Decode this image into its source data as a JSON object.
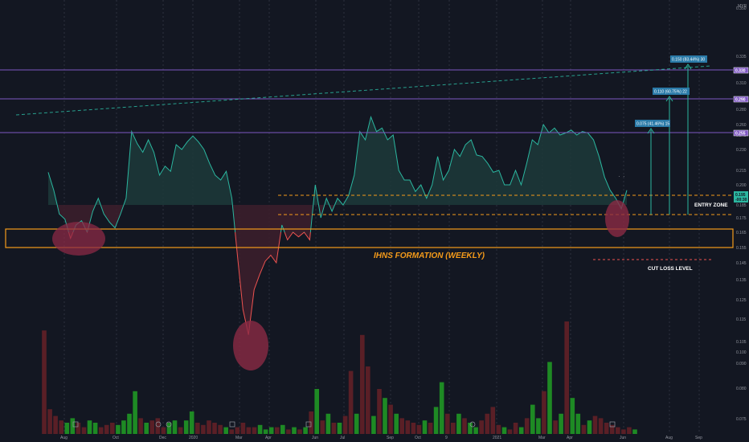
{
  "colors": {
    "background": "#131722",
    "price_line_up": "#2bb7a0",
    "price_line_down": "#ef5350",
    "fill_up": "#1d3a3a",
    "fill_down": "#3d1f2c",
    "horizontal_resistance": "#7e57c2",
    "zone_orange": "#f59b1a",
    "dashed_trend": "#2bb7a0",
    "vol_up": "#1e8a24",
    "vol_down": "#5a1f26",
    "highlight_circle": "#8b2a45",
    "target_box": "#2a7aa8",
    "cut_loss": "#ef5350"
  },
  "chart_data": {
    "type": "line",
    "y_axis_unit": "MYR",
    "y_ticks": [
      "0.350",
      "0.335",
      "0.320",
      "0.310",
      "0.290",
      "0.280",
      "0.260",
      "0.245",
      "0.230",
      "0.215",
      "0.200",
      "0.185",
      "0.175",
      "0.165",
      "0.155",
      "0.145",
      "0.135",
      "0.125",
      "0.115",
      "0.105",
      "0.100",
      "0.090",
      "0.080",
      "0.075"
    ],
    "x_ticks": [
      "Aug",
      "Oct",
      "Dec",
      "2020",
      "Mar",
      "Apr",
      "Jun",
      "Jul",
      "Sep",
      "Oct",
      "9",
      "2021",
      "Mar",
      "Apr",
      "Jun",
      "Aug",
      "Sep"
    ],
    "price_series": {
      "name": "",
      "note_values": "weekly closes (approx)",
      "values": [
        0.213,
        0.196,
        0.178,
        0.174,
        0.161,
        0.17,
        0.173,
        0.165,
        0.18,
        0.19,
        0.178,
        0.172,
        0.168,
        0.178,
        0.19,
        0.25,
        0.236,
        0.228,
        0.24,
        0.228,
        0.21,
        0.218,
        0.214,
        0.235,
        0.23,
        0.238,
        0.244,
        0.238,
        0.23,
        0.22,
        0.21,
        0.205,
        0.214,
        0.19,
        0.15,
        0.12,
        0.108,
        0.13,
        0.138,
        0.146,
        0.15,
        0.145,
        0.17,
        0.16,
        0.165,
        0.162,
        0.165,
        0.16,
        0.2,
        0.175,
        0.19,
        0.18,
        0.19,
        0.185,
        0.192,
        0.21,
        0.25,
        0.24,
        0.27,
        0.25,
        0.255,
        0.24,
        0.245,
        0.215,
        0.205,
        0.205,
        0.195,
        0.2,
        0.19,
        0.2,
        0.225,
        0.205,
        0.215,
        0.23,
        0.225,
        0.235,
        0.24,
        0.226,
        0.225,
        0.22,
        0.213,
        0.215,
        0.2,
        0.2,
        0.215,
        0.2,
        0.22,
        0.24,
        0.235,
        0.26,
        0.248,
        0.255,
        0.245,
        0.248,
        0.252,
        0.245,
        0.25,
        0.248,
        0.24,
        0.225,
        0.208,
        0.196,
        0.19,
        0.182,
        0.196
      ]
    },
    "volume_series": {
      "name": "",
      "note_values": "relative weekly volume (0-1)",
      "values": [
        0.92,
        0.22,
        0.16,
        0.12,
        0.1,
        0.14,
        0.1,
        0.06,
        0.12,
        0.1,
        0.06,
        0.08,
        0.1,
        0.08,
        0.12,
        0.18,
        0.38,
        0.14,
        0.1,
        0.12,
        0.14,
        0.06,
        0.1,
        0.12,
        0.06,
        0.12,
        0.2,
        0.1,
        0.08,
        0.12,
        0.1,
        0.08,
        0.06,
        0.04,
        0.06,
        0.1,
        0.06,
        0.06,
        0.08,
        0.04,
        0.06,
        0.06,
        0.08,
        0.04,
        0.06,
        0.04,
        0.06,
        0.2,
        0.4,
        0.12,
        0.18,
        0.1,
        0.1,
        0.16,
        0.56,
        0.18,
        0.88,
        0.6,
        0.16,
        0.4,
        0.32,
        0.26,
        0.18,
        0.14,
        0.12,
        0.1,
        0.08,
        0.12,
        0.1,
        0.24,
        0.46,
        0.18,
        0.1,
        0.18,
        0.14,
        0.1,
        0.06,
        0.12,
        0.18,
        0.24,
        0.08,
        0.06,
        0.04,
        0.1,
        0.06,
        0.14,
        0.26,
        0.14,
        0.38,
        0.64,
        0.12,
        0.18,
        1.0,
        0.32,
        0.18,
        0.08,
        0.12,
        0.16,
        0.14,
        0.1,
        0.08,
        0.06,
        0.04,
        0.06,
        0.04
      ],
      "up": [
        false,
        false,
        false,
        false,
        true,
        true,
        false,
        false,
        true,
        true,
        false,
        false,
        false,
        true,
        true,
        true,
        true,
        false,
        true,
        false,
        false,
        false,
        true,
        true,
        false,
        true,
        true,
        false,
        false,
        false,
        false,
        false,
        true,
        false,
        false,
        false,
        false,
        false,
        true,
        true,
        true,
        false,
        true,
        false,
        true,
        false,
        true,
        false,
        true,
        false,
        true,
        false,
        true,
        false,
        false,
        true,
        false,
        false,
        true,
        false,
        true,
        false,
        true,
        false,
        false,
        false,
        false,
        true,
        false,
        true,
        true,
        false,
        false,
        true,
        false,
        true,
        true,
        false,
        false,
        false,
        false,
        true,
        false,
        false,
        true,
        false,
        true,
        true,
        false,
        true,
        false,
        true,
        false,
        true,
        true,
        false,
        true,
        false,
        false,
        false,
        false,
        false,
        false,
        false,
        true
      ]
    },
    "horizontal_levels": [
      {
        "price": "0.330",
        "label": "0.330"
      },
      {
        "price": "0.290",
        "label": "0.290"
      },
      {
        "price": "0.255",
        "label": "0.255"
      }
    ],
    "current_price_tag": "0.195",
    "current_price_sub": "-00:30",
    "targets": [
      {
        "label": "0.075 (41.46%) 15"
      },
      {
        "label": "0.110 (60.75%) 22"
      },
      {
        "label": "0.150 (83.44%) 30"
      }
    ],
    "annotations": {
      "formation": "IHNS FORMATION (WEEKLY)",
      "entry": "ENTRY ZONE",
      "cut_loss": "CUT LOSS LEVEL"
    }
  }
}
